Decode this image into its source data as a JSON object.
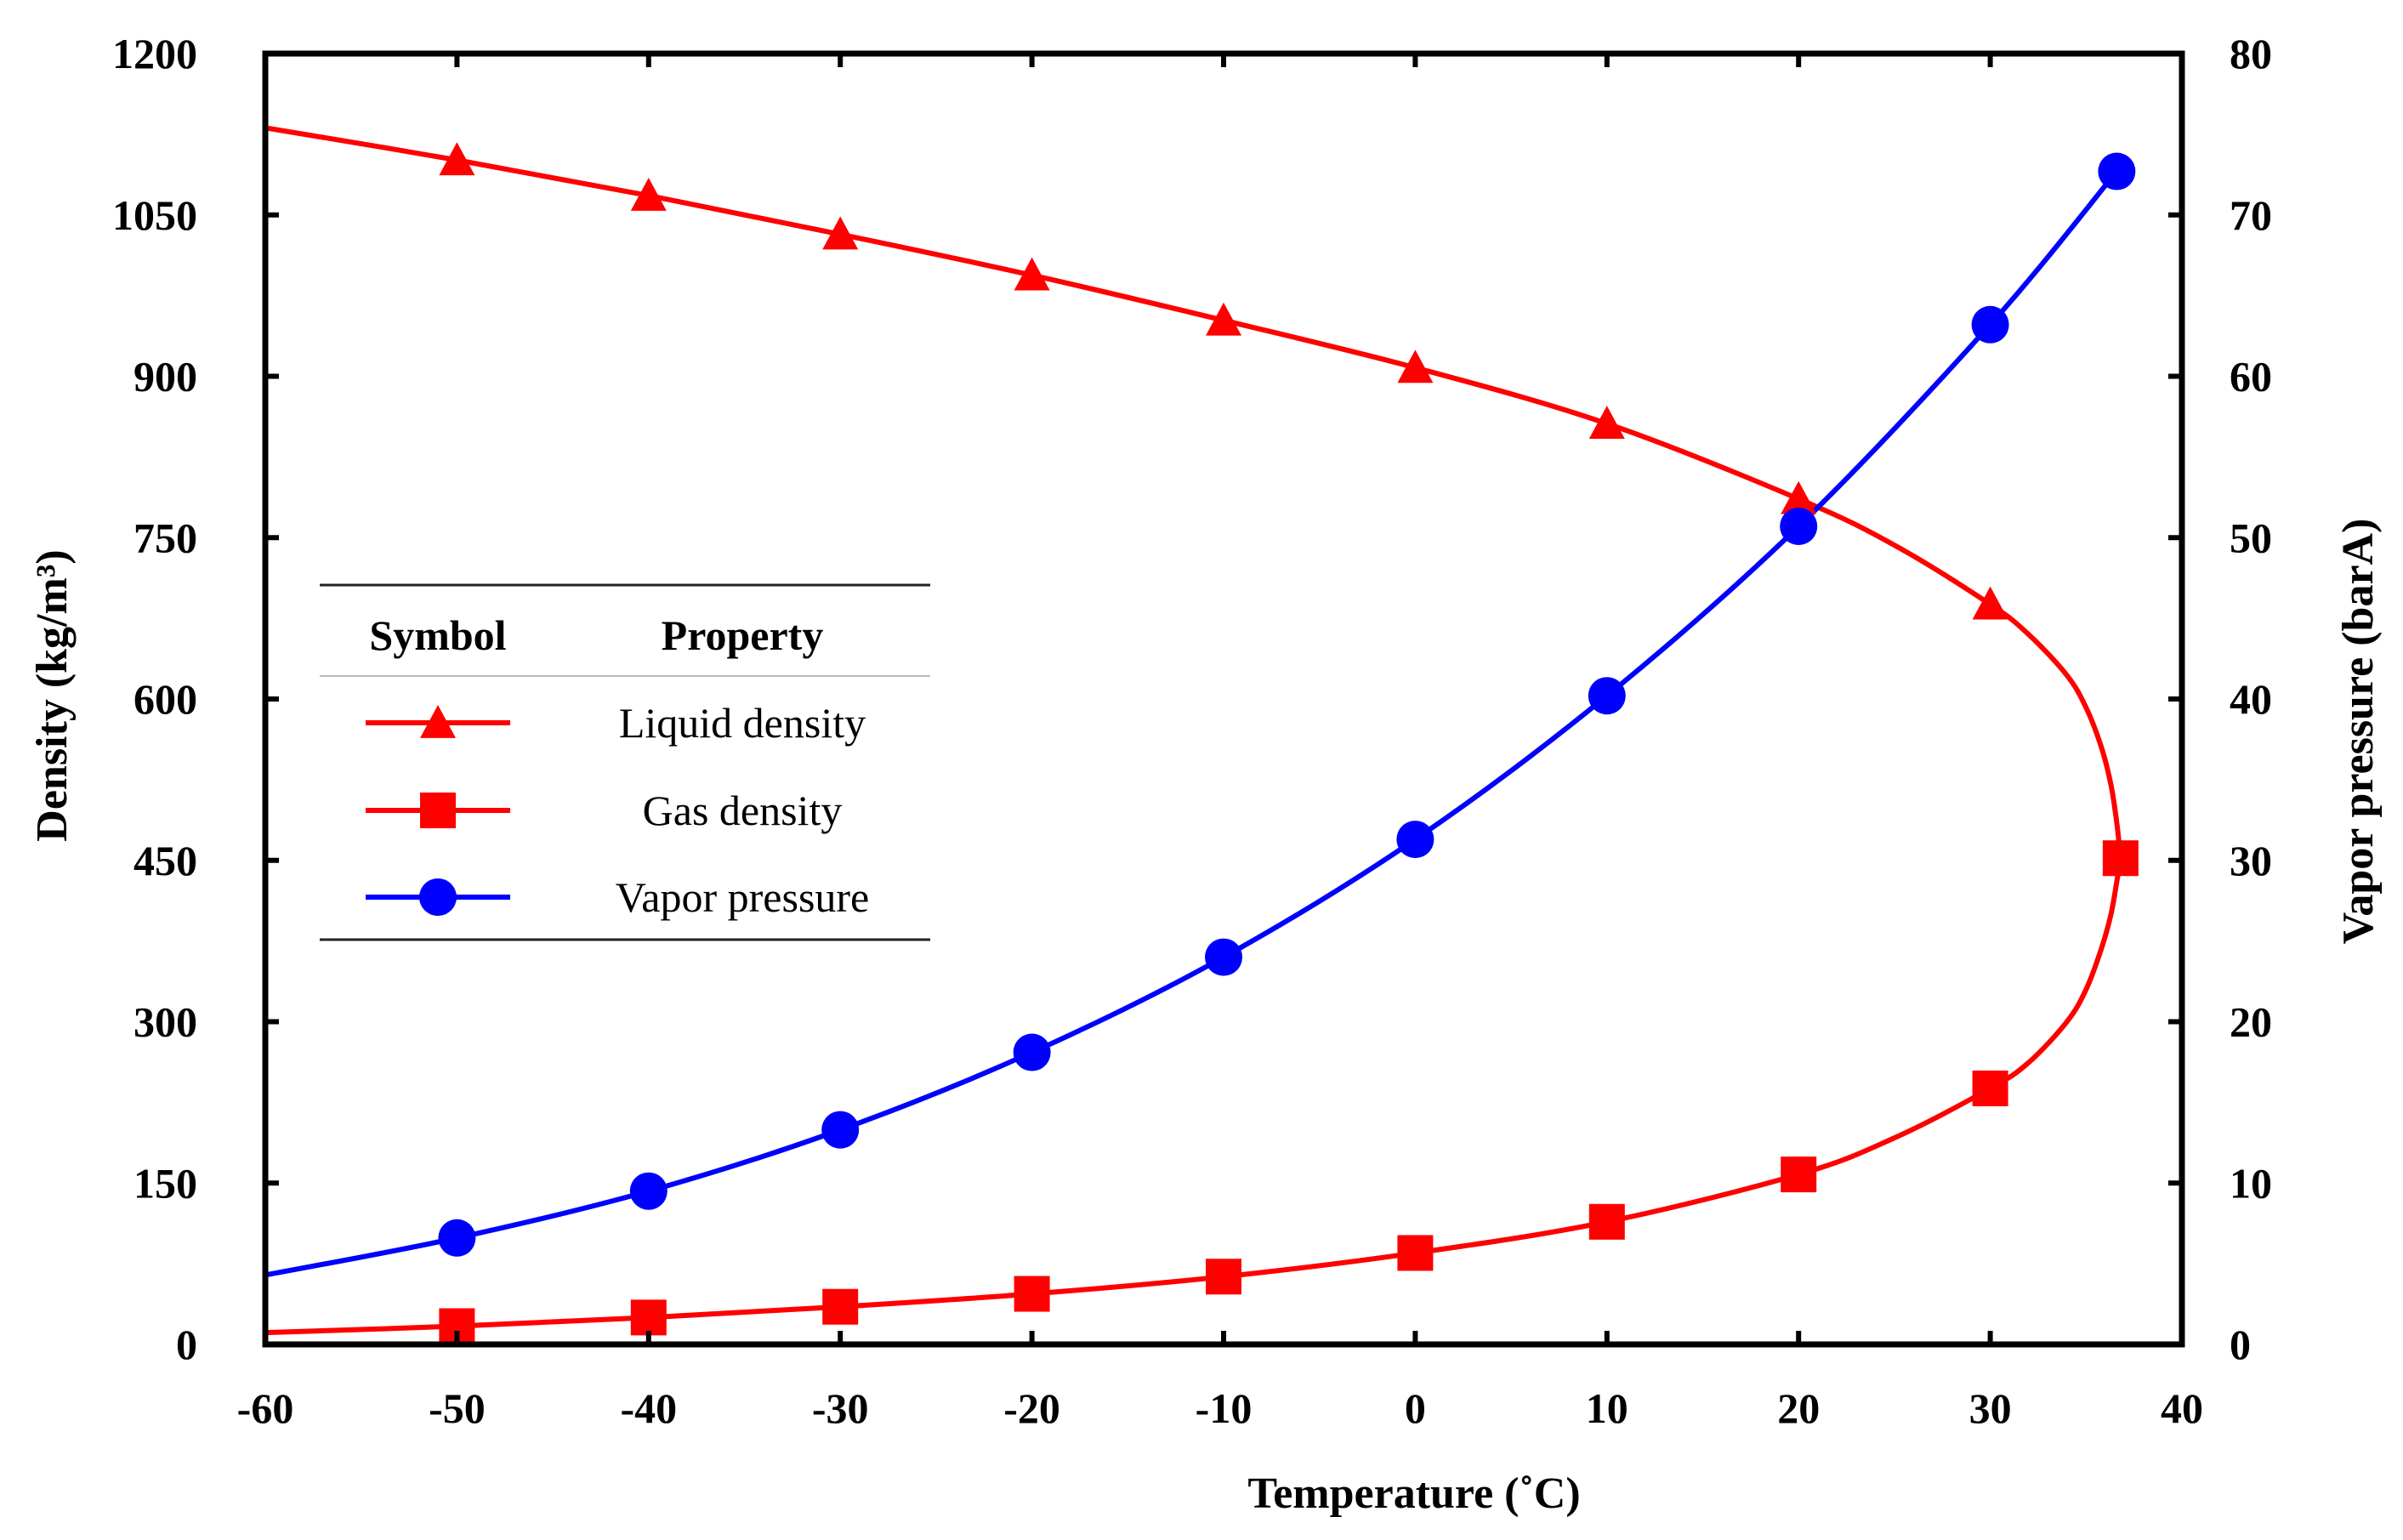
{
  "chart_data": {
    "type": "line",
    "title": "",
    "xlabel": "Temperature (˚C)",
    "ylabel_left": "Density (kg/m³)",
    "ylabel_right": "Vapor pressure (barA)",
    "xlim": [
      -60,
      40
    ],
    "ylim_left": [
      0,
      1200
    ],
    "ylim_right": [
      0,
      80
    ],
    "x_ticks": [
      -60,
      -50,
      -40,
      -30,
      -20,
      -10,
      0,
      10,
      20,
      30,
      40
    ],
    "y_left_ticks": [
      0,
      150,
      300,
      450,
      600,
      750,
      900,
      1050,
      1200
    ],
    "y_right_ticks": [
      0,
      10,
      20,
      30,
      40,
      50,
      60,
      70,
      80
    ],
    "grid": false,
    "legend": {
      "placement": "center-left",
      "header_symbol": "Symbol",
      "header_property": "Property",
      "entries": [
        {
          "label": "Liquid density",
          "marker": "triangle",
          "color": "#ff0000"
        },
        {
          "label": "Gas density",
          "marker": "square",
          "color": "#ff0000"
        },
        {
          "label": "Vapor pressure",
          "marker": "circle",
          "color": "#0000ff"
        }
      ]
    },
    "series": [
      {
        "name": "Liquid density",
        "axis": "left",
        "color": "#ff0000",
        "marker": "triangle",
        "markers": {
          "x": [
            -50,
            -40,
            -30,
            -20,
            -10,
            0,
            10,
            20,
            30
          ],
          "y": [
            1101,
            1068,
            1032,
            994,
            952,
            908,
            856,
            786,
            688
          ]
        },
        "curve": {
          "x": [
            -60,
            -50,
            -40,
            -30,
            -20,
            -10,
            0,
            10,
            20,
            25,
            30,
            32,
            34,
            35,
            35.8,
            36.3,
            36.6,
            36.8
          ],
          "y": [
            1131,
            1101,
            1068,
            1032,
            994,
            952,
            908,
            856,
            786,
            743,
            688,
            660,
            622,
            592,
            555,
            520,
            485,
            452
          ]
        }
      },
      {
        "name": "Gas density",
        "axis": "left",
        "color": "#ff0000",
        "marker": "square",
        "markers": {
          "x": [
            -50,
            -40,
            -30,
            -20,
            -10,
            0,
            10,
            20,
            30,
            36.8
          ],
          "y": [
            17,
            25,
            35,
            47,
            63,
            85,
            114,
            158,
            238,
            452
          ]
        },
        "curve": {
          "x": [
            -60,
            -50,
            -40,
            -30,
            -20,
            -10,
            0,
            10,
            20,
            25,
            30,
            32,
            34,
            35,
            35.8,
            36.3,
            36.6,
            36.8
          ],
          "y": [
            11,
            17,
            25,
            35,
            47,
            63,
            85,
            114,
            158,
            192,
            238,
            262,
            300,
            330,
            368,
            400,
            430,
            452
          ]
        }
      },
      {
        "name": "Vapor pressure",
        "axis": "right",
        "color": "#0000ff",
        "marker": "circle",
        "markers": {
          "x": [
            -50,
            -40,
            -30,
            -20,
            -10,
            0,
            10,
            20,
            30,
            36.6
          ],
          "y": [
            6.6,
            9.5,
            13.3,
            18.1,
            24.0,
            31.3,
            40.2,
            50.7,
            63.2,
            72.7
          ]
        },
        "curve": {
          "x": [
            -60,
            -50,
            -40,
            -30,
            -20,
            -10,
            0,
            10,
            20,
            30,
            36.6
          ],
          "y": [
            4.3,
            6.6,
            9.5,
            13.3,
            18.1,
            24.0,
            31.3,
            40.2,
            50.7,
            63.2,
            72.7
          ]
        }
      }
    ]
  }
}
